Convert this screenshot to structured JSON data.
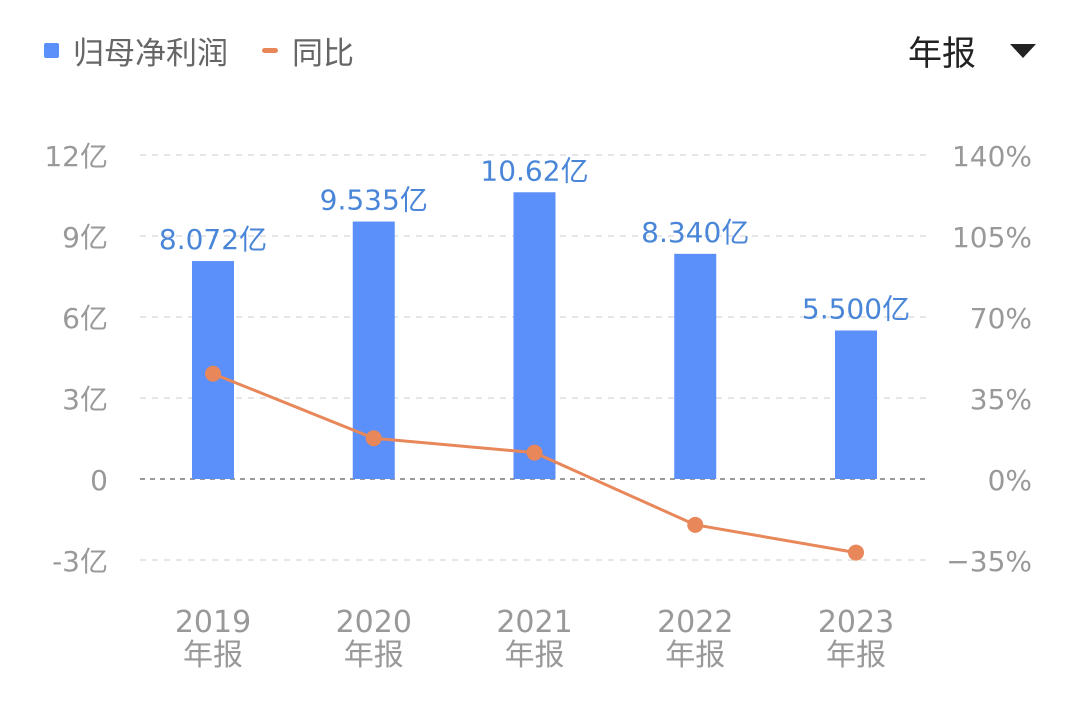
{
  "legend": {
    "bar_label": "归母净利润",
    "line_label": "同比"
  },
  "period_selector": {
    "value": "年报"
  },
  "chart_data": {
    "type": "bar",
    "categories": [
      "2019年报",
      "2020年报",
      "2021年报",
      "2022年报",
      "2023年报"
    ],
    "category_lines": [
      [
        "2019",
        "年报"
      ],
      [
        "2020",
        "年报"
      ],
      [
        "2021",
        "年报"
      ],
      [
        "2022",
        "年报"
      ],
      [
        "2023",
        "年报"
      ]
    ],
    "series": [
      {
        "name": "归母净利润",
        "type": "bar",
        "axis": "left",
        "values": [
          8.072,
          9.535,
          10.62,
          8.34,
          5.5
        ],
        "labels": [
          "8.072亿",
          "9.535亿",
          "10.62亿",
          "8.340亿",
          "5.500亿"
        ],
        "color": "#5b8ff9"
      },
      {
        "name": "同比",
        "type": "line",
        "axis": "right",
        "values": [
          45.5,
          17.6,
          11.4,
          -19.8,
          -31.8
        ],
        "color": "#e8875a"
      }
    ],
    "left_axis": {
      "ylim": [
        -3,
        12
      ],
      "ticks": [
        12,
        9,
        6,
        3,
        0,
        -3
      ],
      "tick_labels": [
        "12亿",
        "9亿",
        "6亿",
        "3亿",
        "0",
        "-3亿"
      ]
    },
    "right_axis": {
      "ylim": [
        -35,
        140
      ],
      "ticks": [
        140,
        105,
        70,
        35,
        0,
        -35
      ],
      "tick_labels": [
        "140%",
        "105%",
        "70%",
        "35%",
        "0%",
        "−35%"
      ]
    },
    "grid": true,
    "legend_position": "top-left",
    "label_color": "#4a86d8",
    "tick_color": "#999999"
  }
}
